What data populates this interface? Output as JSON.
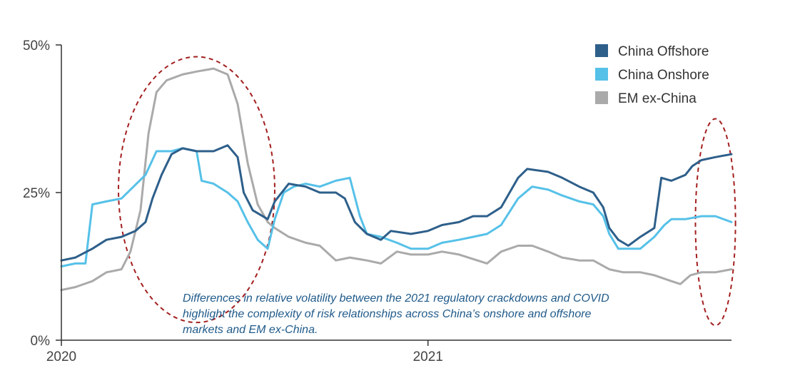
{
  "chart_data": {
    "type": "line",
    "title": "",
    "xlabel": "",
    "ylabel": "",
    "y_unit": "%",
    "ylim": [
      0,
      50
    ],
    "yticks": [
      {
        "value": 0,
        "label": "0%"
      },
      {
        "value": 25,
        "label": "25%"
      },
      {
        "value": 50,
        "label": "50%"
      }
    ],
    "x_range": [
      "2020-01-01",
      "2021-10-31"
    ],
    "xticks": [
      {
        "date": "2020-01-01",
        "label": "2020"
      },
      {
        "date": "2021-01-01",
        "label": "2021"
      }
    ],
    "grid": false,
    "legend_position": "top-right",
    "series": [
      {
        "name": "China Offshore",
        "color": "#2e5f8a",
        "points": [
          [
            "2020-01-01",
            13.5
          ],
          [
            "2020-01-15",
            14
          ],
          [
            "2020-02-01",
            15.5
          ],
          [
            "2020-02-15",
            17
          ],
          [
            "2020-03-01",
            17.5
          ],
          [
            "2020-03-15",
            18.5
          ],
          [
            "2020-03-25",
            20
          ],
          [
            "2020-04-01",
            24
          ],
          [
            "2020-04-10",
            28
          ],
          [
            "2020-04-20",
            31.5
          ],
          [
            "2020-05-01",
            32.5
          ],
          [
            "2020-05-15",
            32
          ],
          [
            "2020-06-01",
            32
          ],
          [
            "2020-06-15",
            33
          ],
          [
            "2020-06-25",
            31
          ],
          [
            "2020-07-01",
            25
          ],
          [
            "2020-07-10",
            22
          ],
          [
            "2020-07-20",
            21
          ],
          [
            "2020-07-25",
            20.5
          ],
          [
            "2020-08-01",
            23.5
          ],
          [
            "2020-08-15",
            26.5
          ],
          [
            "2020-09-01",
            26
          ],
          [
            "2020-09-15",
            25
          ],
          [
            "2020-10-01",
            25
          ],
          [
            "2020-10-10",
            24
          ],
          [
            "2020-10-20",
            20
          ],
          [
            "2020-11-01",
            18
          ],
          [
            "2020-11-15",
            17
          ],
          [
            "2020-11-25",
            18.5
          ],
          [
            "2020-12-15",
            18
          ],
          [
            "2021-01-01",
            18.5
          ],
          [
            "2021-01-15",
            19.5
          ],
          [
            "2021-02-01",
            20
          ],
          [
            "2021-02-15",
            21
          ],
          [
            "2021-03-01",
            21
          ],
          [
            "2021-03-15",
            22.5
          ],
          [
            "2021-04-01",
            27.5
          ],
          [
            "2021-04-10",
            29
          ],
          [
            "2021-05-01",
            28.5
          ],
          [
            "2021-05-15",
            27.5
          ],
          [
            "2021-06-01",
            26
          ],
          [
            "2021-06-15",
            25
          ],
          [
            "2021-06-25",
            22.5
          ],
          [
            "2021-07-01",
            19
          ],
          [
            "2021-07-10",
            17
          ],
          [
            "2021-07-20",
            16
          ],
          [
            "2021-08-01",
            17.5
          ],
          [
            "2021-08-15",
            19
          ],
          [
            "2021-08-22",
            27.5
          ],
          [
            "2021-09-01",
            27
          ],
          [
            "2021-09-15",
            28
          ],
          [
            "2021-09-22",
            29.5
          ],
          [
            "2021-10-01",
            30.5
          ],
          [
            "2021-10-15",
            31
          ],
          [
            "2021-10-31",
            31.5
          ]
        ]
      },
      {
        "name": "China Onshore",
        "color": "#56c1e8",
        "points": [
          [
            "2020-01-01",
            12.5
          ],
          [
            "2020-01-15",
            13
          ],
          [
            "2020-01-25",
            13
          ],
          [
            "2020-02-01",
            23
          ],
          [
            "2020-02-15",
            23.5
          ],
          [
            "2020-03-01",
            24
          ],
          [
            "2020-03-10",
            25.5
          ],
          [
            "2020-03-25",
            28
          ],
          [
            "2020-04-05",
            32
          ],
          [
            "2020-04-20",
            32
          ],
          [
            "2020-05-01",
            32.5
          ],
          [
            "2020-05-15",
            32
          ],
          [
            "2020-05-20",
            27
          ],
          [
            "2020-06-01",
            26.5
          ],
          [
            "2020-06-15",
            25
          ],
          [
            "2020-06-25",
            23.5
          ],
          [
            "2020-07-05",
            20
          ],
          [
            "2020-07-15",
            17
          ],
          [
            "2020-07-25",
            15.5
          ],
          [
            "2020-08-01",
            20.5
          ],
          [
            "2020-08-10",
            25
          ],
          [
            "2020-08-20",
            26
          ],
          [
            "2020-09-01",
            26.5
          ],
          [
            "2020-09-15",
            26
          ],
          [
            "2020-10-01",
            27
          ],
          [
            "2020-10-15",
            27.5
          ],
          [
            "2020-10-25",
            21
          ],
          [
            "2020-11-01",
            18
          ],
          [
            "2020-11-15",
            17.5
          ],
          [
            "2020-12-01",
            16.5
          ],
          [
            "2020-12-15",
            15.5
          ],
          [
            "2021-01-01",
            15.5
          ],
          [
            "2021-01-15",
            16.5
          ],
          [
            "2021-02-01",
            17
          ],
          [
            "2021-02-15",
            17.5
          ],
          [
            "2021-03-01",
            18
          ],
          [
            "2021-03-15",
            19.5
          ],
          [
            "2021-04-01",
            24
          ],
          [
            "2021-04-15",
            26
          ],
          [
            "2021-05-01",
            25.5
          ],
          [
            "2021-05-15",
            24.5
          ],
          [
            "2021-06-01",
            23.5
          ],
          [
            "2021-06-15",
            23
          ],
          [
            "2021-06-25",
            21
          ],
          [
            "2021-07-01",
            18
          ],
          [
            "2021-07-10",
            15.5
          ],
          [
            "2021-08-01",
            15.5
          ],
          [
            "2021-08-15",
            17.5
          ],
          [
            "2021-08-25",
            19.5
          ],
          [
            "2021-09-01",
            20.5
          ],
          [
            "2021-09-15",
            20.5
          ],
          [
            "2021-10-01",
            21
          ],
          [
            "2021-10-15",
            21
          ],
          [
            "2021-10-31",
            20
          ]
        ]
      },
      {
        "name": "EM ex-China",
        "color": "#aaaaaa",
        "points": [
          [
            "2020-01-01",
            8.5
          ],
          [
            "2020-01-15",
            9
          ],
          [
            "2020-02-01",
            10
          ],
          [
            "2020-02-15",
            11.5
          ],
          [
            "2020-03-01",
            12
          ],
          [
            "2020-03-10",
            15
          ],
          [
            "2020-03-20",
            22
          ],
          [
            "2020-03-28",
            35
          ],
          [
            "2020-04-05",
            42
          ],
          [
            "2020-04-15",
            44
          ],
          [
            "2020-05-01",
            45
          ],
          [
            "2020-05-15",
            45.5
          ],
          [
            "2020-06-01",
            46
          ],
          [
            "2020-06-15",
            45
          ],
          [
            "2020-06-25",
            40
          ],
          [
            "2020-07-05",
            30
          ],
          [
            "2020-07-15",
            23
          ],
          [
            "2020-07-25",
            20
          ],
          [
            "2020-08-01",
            19
          ],
          [
            "2020-08-15",
            17.5
          ],
          [
            "2020-09-01",
            16.5
          ],
          [
            "2020-09-15",
            16
          ],
          [
            "2020-10-01",
            13.5
          ],
          [
            "2020-10-15",
            14
          ],
          [
            "2020-11-01",
            13.5
          ],
          [
            "2020-11-15",
            13
          ],
          [
            "2020-12-01",
            15
          ],
          [
            "2020-12-15",
            14.5
          ],
          [
            "2021-01-01",
            14.5
          ],
          [
            "2021-01-15",
            15
          ],
          [
            "2021-02-01",
            14.5
          ],
          [
            "2021-03-01",
            13
          ],
          [
            "2021-03-15",
            15
          ],
          [
            "2021-04-01",
            16
          ],
          [
            "2021-04-15",
            16
          ],
          [
            "2021-05-01",
            15
          ],
          [
            "2021-05-15",
            14
          ],
          [
            "2021-06-01",
            13.5
          ],
          [
            "2021-06-15",
            13.5
          ],
          [
            "2021-07-01",
            12
          ],
          [
            "2021-07-15",
            11.5
          ],
          [
            "2021-08-01",
            11.5
          ],
          [
            "2021-08-15",
            11
          ],
          [
            "2021-09-01",
            10
          ],
          [
            "2021-09-10",
            9.5
          ],
          [
            "2021-09-20",
            11
          ],
          [
            "2021-10-01",
            11.5
          ],
          [
            "2021-10-15",
            11.5
          ],
          [
            "2021-10-31",
            12
          ]
        ]
      }
    ],
    "annotations": [
      {
        "type": "text",
        "lines": [
          "Differences in relative volatility between the 2021 regulatory crackdowns and COVID",
          "highlight the complexity of risk relationships across China’s onshore and offshore",
          "markets and EM ex-China."
        ]
      },
      {
        "type": "ellipse",
        "style": "dashed",
        "color": "#a31f1f",
        "center": [
          "2020-05-15",
          25.5
        ],
        "rx_days": 78,
        "ry_value": 22.5
      },
      {
        "type": "ellipse",
        "style": "dashed",
        "color": "#a31f1f",
        "center": [
          "2021-10-15",
          20
        ],
        "rx_days": 20,
        "ry_value": 17.5
      }
    ]
  }
}
